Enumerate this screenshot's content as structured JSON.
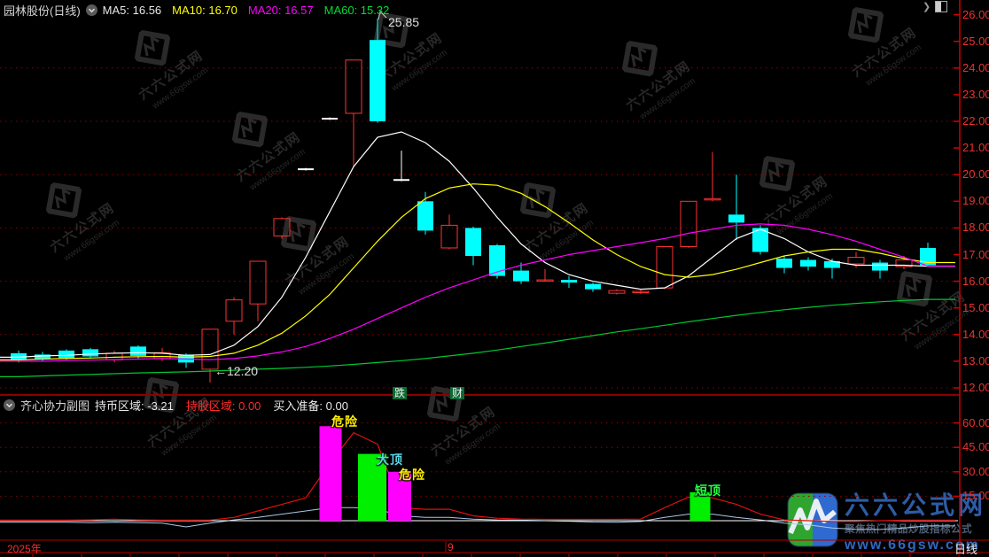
{
  "window": {
    "period_label": "日线"
  },
  "header": {
    "title": "园林股份(日线)",
    "ma_items": [
      {
        "label": "MA5: 16.56",
        "color": "#e8e8e8"
      },
      {
        "label": "MA10: 16.70",
        "color": "#ffff00"
      },
      {
        "label": "MA20: 16.57",
        "color": "#ff00ff"
      },
      {
        "label": "MA60: 15.32",
        "color": "#00dd33"
      }
    ]
  },
  "sub_header": {
    "title": "齐心协力副图",
    "fields": [
      {
        "label": "持币区域: -3.21",
        "color": "#e8e8e8"
      },
      {
        "label": "持股区域: 0.00",
        "color": "#ff2a2a"
      },
      {
        "label": "买入准备: 0.00",
        "color": "#e8e8e8"
      }
    ]
  },
  "x_axis": {
    "year_label": "2025年",
    "month_label": "9",
    "month_x": 505
  },
  "watermark": {
    "brand": "六六公式网",
    "tagline": "聚焦热门精品炒股指标公式",
    "url": "www.66gsw.com",
    "brand_color": "#2d5ca6"
  },
  "chart_data": {
    "type": "candlestick",
    "title": "园林股份(日线)",
    "main": {
      "ylim": [
        11.8,
        26.3
      ],
      "y_ticks": [
        12,
        13,
        14,
        15,
        16,
        17,
        18,
        19,
        20,
        21,
        22,
        23,
        24,
        25,
        26
      ],
      "gridline_values": [
        12,
        14,
        16,
        18,
        20,
        22,
        24
      ],
      "annotations": [
        {
          "text": "25.85",
          "x": 438,
          "y": 18
        },
        {
          "text": "←12.20",
          "x": 242,
          "y": 412
        }
      ],
      "event_markers": [
        {
          "text": "跌",
          "index": 16,
          "dx": -2
        },
        {
          "text": "财",
          "index": 18,
          "dx": 9
        }
      ],
      "candles": [
        [
          13.3,
          13.4,
          12.95,
          13.05,
          "d"
        ],
        [
          13.25,
          13.35,
          13.0,
          13.08,
          "d"
        ],
        [
          13.4,
          13.45,
          13.05,
          13.12,
          "d"
        ],
        [
          13.45,
          13.5,
          13.1,
          13.18,
          "d"
        ],
        [
          13.05,
          13.4,
          12.95,
          13.3,
          "u"
        ],
        [
          13.55,
          13.6,
          13.1,
          13.2,
          "d"
        ],
        [
          13.1,
          13.5,
          13.0,
          13.32,
          "u"
        ],
        [
          13.25,
          13.3,
          12.75,
          12.95,
          "d"
        ],
        [
          12.7,
          14.2,
          12.2,
          14.2,
          "u"
        ],
        [
          14.5,
          15.4,
          14.0,
          15.3,
          "u"
        ],
        [
          15.15,
          16.75,
          14.5,
          16.75,
          "u"
        ],
        [
          17.7,
          18.4,
          17.6,
          18.35,
          "u"
        ],
        [
          20.2,
          20.25,
          20.15,
          20.2,
          "j"
        ],
        [
          22.1,
          22.15,
          22.05,
          22.1,
          "j"
        ],
        [
          22.3,
          24.3,
          20.3,
          24.3,
          "u"
        ],
        [
          25.05,
          25.85,
          21.95,
          22.0,
          "d"
        ],
        [
          19.8,
          20.9,
          19.75,
          19.8,
          "j"
        ],
        [
          19.0,
          19.35,
          17.75,
          17.9,
          "d"
        ],
        [
          17.25,
          18.5,
          17.2,
          18.1,
          "u"
        ],
        [
          18.0,
          18.05,
          16.6,
          16.95,
          "d"
        ],
        [
          17.35,
          17.4,
          16.1,
          16.2,
          "d"
        ],
        [
          16.4,
          16.7,
          15.9,
          16.0,
          "d"
        ],
        [
          16.05,
          16.45,
          16.0,
          16.05,
          "u"
        ],
        [
          16.05,
          16.2,
          15.75,
          15.95,
          "d"
        ],
        [
          15.9,
          15.95,
          15.6,
          15.7,
          "d"
        ],
        [
          15.55,
          15.7,
          15.5,
          15.65,
          "u"
        ],
        [
          15.6,
          15.68,
          15.52,
          15.62,
          "u"
        ],
        [
          15.75,
          17.3,
          15.7,
          17.3,
          "u"
        ],
        [
          17.3,
          19.0,
          17.25,
          19.0,
          "u"
        ],
        [
          19.05,
          20.85,
          19.0,
          19.1,
          "u"
        ],
        [
          18.5,
          20.0,
          17.55,
          18.2,
          "d"
        ],
        [
          18.0,
          18.1,
          17.0,
          17.1,
          "d"
        ],
        [
          16.85,
          16.95,
          16.3,
          16.5,
          "d"
        ],
        [
          16.8,
          16.9,
          16.4,
          16.55,
          "d"
        ],
        [
          16.75,
          16.85,
          16.1,
          16.5,
          "d"
        ],
        [
          16.65,
          17.1,
          16.5,
          16.9,
          "u"
        ],
        [
          16.7,
          16.8,
          16.1,
          16.4,
          "d"
        ],
        [
          16.55,
          16.95,
          16.45,
          16.8,
          "u"
        ],
        [
          17.25,
          17.45,
          16.55,
          16.6,
          "d"
        ]
      ],
      "ma_series": [
        {
          "name": "MA5",
          "color": "#ffffff",
          "values": [
            13.15,
            13.2,
            13.22,
            13.27,
            13.3,
            13.32,
            13.3,
            13.22,
            13.25,
            13.6,
            14.3,
            15.4,
            16.9,
            18.6,
            20.3,
            21.4,
            21.6,
            21.2,
            20.5,
            19.5,
            18.4,
            17.4,
            16.7,
            16.25,
            16.0,
            15.85,
            15.7,
            15.75,
            16.2,
            16.9,
            17.6,
            17.95,
            17.6,
            17.1,
            16.75,
            16.6,
            16.6,
            16.6,
            16.56
          ]
        },
        {
          "name": "MA10",
          "color": "#ffff00",
          "values": [
            13.05,
            13.08,
            13.1,
            13.12,
            13.15,
            13.17,
            13.18,
            13.15,
            13.18,
            13.3,
            13.6,
            14.05,
            14.7,
            15.5,
            16.5,
            17.5,
            18.4,
            19.1,
            19.5,
            19.65,
            19.6,
            19.3,
            18.8,
            18.2,
            17.55,
            17.0,
            16.55,
            16.25,
            16.15,
            16.25,
            16.45,
            16.7,
            16.95,
            17.1,
            17.2,
            17.2,
            17.05,
            16.85,
            16.7
          ]
        },
        {
          "name": "MA20",
          "color": "#ff00ff",
          "values": [
            13.0,
            13.0,
            13.02,
            13.04,
            13.06,
            13.08,
            13.1,
            13.08,
            13.06,
            13.1,
            13.2,
            13.35,
            13.55,
            13.85,
            14.2,
            14.6,
            15.0,
            15.4,
            15.75,
            16.05,
            16.35,
            16.6,
            16.8,
            17.0,
            17.15,
            17.3,
            17.45,
            17.6,
            17.8,
            17.95,
            18.1,
            18.15,
            18.1,
            17.95,
            17.75,
            17.5,
            17.2,
            16.9,
            16.57
          ]
        },
        {
          "name": "MA60",
          "color": "#00c832",
          "values": [
            12.42,
            12.45,
            12.48,
            12.5,
            12.53,
            12.56,
            12.58,
            12.6,
            12.63,
            12.66,
            12.7,
            12.73,
            12.77,
            12.82,
            12.88,
            12.95,
            13.02,
            13.1,
            13.2,
            13.3,
            13.42,
            13.55,
            13.68,
            13.82,
            13.96,
            14.1,
            14.22,
            14.35,
            14.48,
            14.6,
            14.72,
            14.83,
            14.93,
            15.02,
            15.1,
            15.17,
            15.23,
            15.28,
            15.32
          ]
        }
      ]
    },
    "sub": {
      "name": "齐心协力副图",
      "y_ticks": [
        15,
        30,
        45,
        60
      ],
      "bars": [
        {
          "x": 373,
          "width": 25,
          "value": 58,
          "color": "#ff00ff",
          "label": "危险",
          "label_color": "#ffee00",
          "label_dx": 1,
          "label_dy": -15
        },
        {
          "x": 420,
          "width": 32,
          "value": 41,
          "color": "#00f000",
          "label": "大顶",
          "label_color": "#59d8e6",
          "label_dx": 5,
          "label_dy": -4
        },
        {
          "x": 451,
          "width": 26,
          "value": 30,
          "color": "#ff00ff",
          "label": "危险",
          "label_color": "#ffee00",
          "label_dx": -1,
          "label_dy": -7
        },
        {
          "x": 790,
          "width": 23,
          "value": 17.5,
          "color": "#00f000",
          "label": "短顶",
          "label_color": "#22ff44",
          "label_dx": -6,
          "label_dy": -12
        }
      ],
      "lines": [
        {
          "name": "holding",
          "color": "#aac8e8",
          "values": [
            -1,
            -1,
            -1,
            -1.2,
            -1,
            -1.2,
            -1.5,
            -3.8,
            -1.5,
            0.5,
            2,
            4,
            6,
            8,
            8,
            7,
            3,
            2,
            2,
            1,
            0.5,
            0.3,
            0,
            -0.3,
            -0.8,
            -1,
            -0.5,
            2,
            4,
            4,
            2,
            0.5,
            -1.5,
            -2.5,
            -4.5,
            -5.3,
            -5.4,
            -4.5,
            -3.2
          ]
        },
        {
          "name": "signal",
          "color": "#e01010",
          "values": [
            0.3,
            0.3,
            0.3,
            0.5,
            0.9,
            0.5,
            0.3,
            0.3,
            0.4,
            2,
            6,
            10,
            14,
            35,
            54,
            47,
            8,
            7,
            7,
            3,
            1.5,
            1,
            0.8,
            0.8,
            0.8,
            0.8,
            1,
            8,
            14.5,
            14,
            10,
            4,
            0.5,
            0,
            -0.5,
            -0.5,
            0,
            0.3,
            0.3
          ]
        }
      ]
    }
  }
}
